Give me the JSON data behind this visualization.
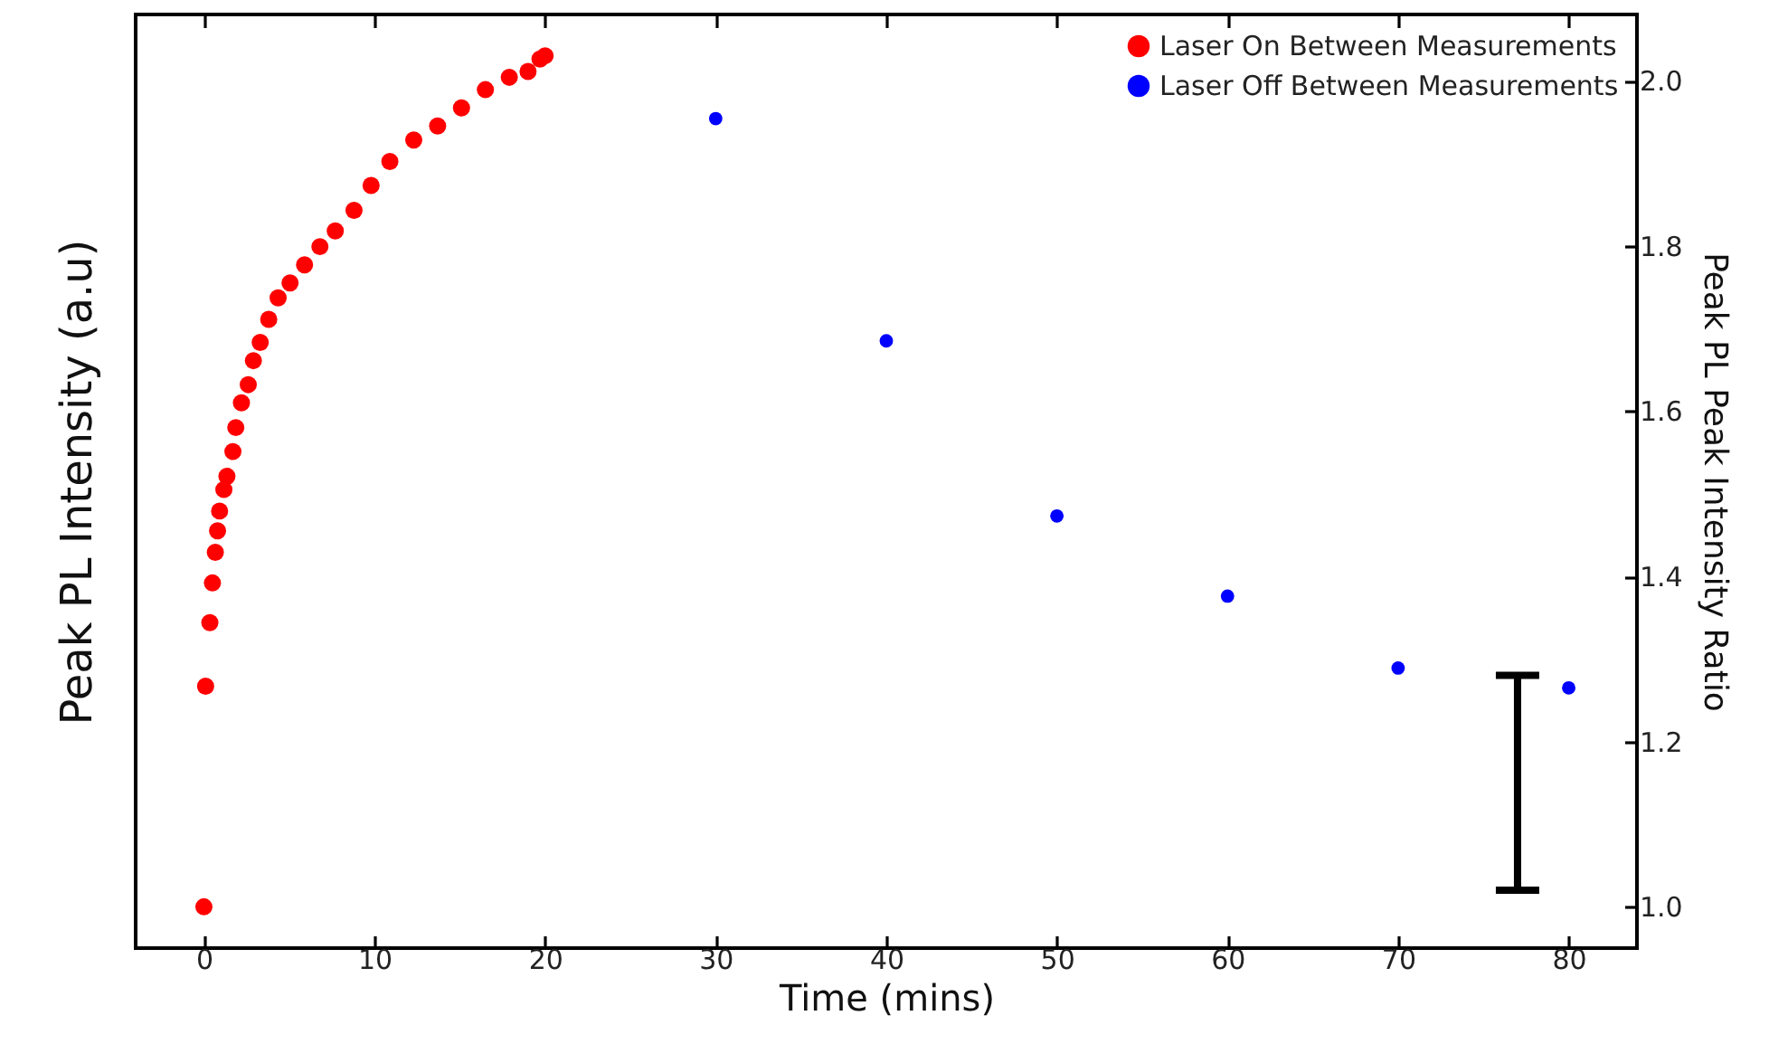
{
  "chart_data": {
    "type": "scatter",
    "xlabel": "Time (mins)",
    "ylabel": "Peak PL Intensity (a.u)",
    "y2label": "Peak PL Peak Intensity Ratio",
    "xlim": [
      -4,
      84
    ],
    "xticks": [
      0,
      10,
      20,
      30,
      40,
      50,
      60,
      70,
      80
    ],
    "y2lim": [
      0.95,
      2.08
    ],
    "y2ticks": [
      {
        "value": 1.0,
        "label": "1.0"
      },
      {
        "value": 1.2,
        "label": "1.2"
      },
      {
        "value": 1.4,
        "label": "1.4"
      },
      {
        "value": 1.6,
        "label": "1.6"
      },
      {
        "value": 1.8,
        "label": "1.8"
      },
      {
        "value": 2.0,
        "label": "2.0"
      }
    ],
    "legend": "top right",
    "marker": "circle",
    "grid": false,
    "series": [
      {
        "name": "Laser On Between Measurements",
        "color": "#ff0000",
        "axis": "y2",
        "x": [
          0,
          0.1,
          0.35,
          0.5,
          0.67,
          0.8,
          0.92,
          1.17,
          1.35,
          1.7,
          1.87,
          2.2,
          2.6,
          2.9,
          3.3,
          3.8,
          4.35,
          5.05,
          5.9,
          6.8,
          7.7,
          8.8,
          9.8,
          10.9,
          12.3,
          13.7,
          15.1,
          16.5,
          17.9,
          19.0,
          19.7,
          20
        ],
        "values": [
          1.0,
          1.267,
          1.344,
          1.392,
          1.429,
          1.455,
          1.479,
          1.505,
          1.521,
          1.551,
          1.58,
          1.61,
          1.632,
          1.661,
          1.683,
          1.711,
          1.737,
          1.755,
          1.777,
          1.799,
          1.818,
          1.843,
          1.873,
          1.902,
          1.928,
          1.945,
          1.967,
          1.989,
          2.004,
          2.011,
          2.026,
          2.03
        ]
      },
      {
        "name": "Laser Off Between Measurements",
        "color": "#0000ff",
        "axis": "y2",
        "x": [
          30,
          40,
          50,
          60,
          70,
          80
        ],
        "values": [
          1.954,
          1.685,
          1.473,
          1.376,
          1.289,
          1.265
        ]
      },
      {
        "type": "bar",
        "color": "#000000",
        "axis": "y2",
        "x": [
          77
        ],
        "base": [
          1.02
        ],
        "values": [
          0.26
        ]
      }
    ]
  }
}
